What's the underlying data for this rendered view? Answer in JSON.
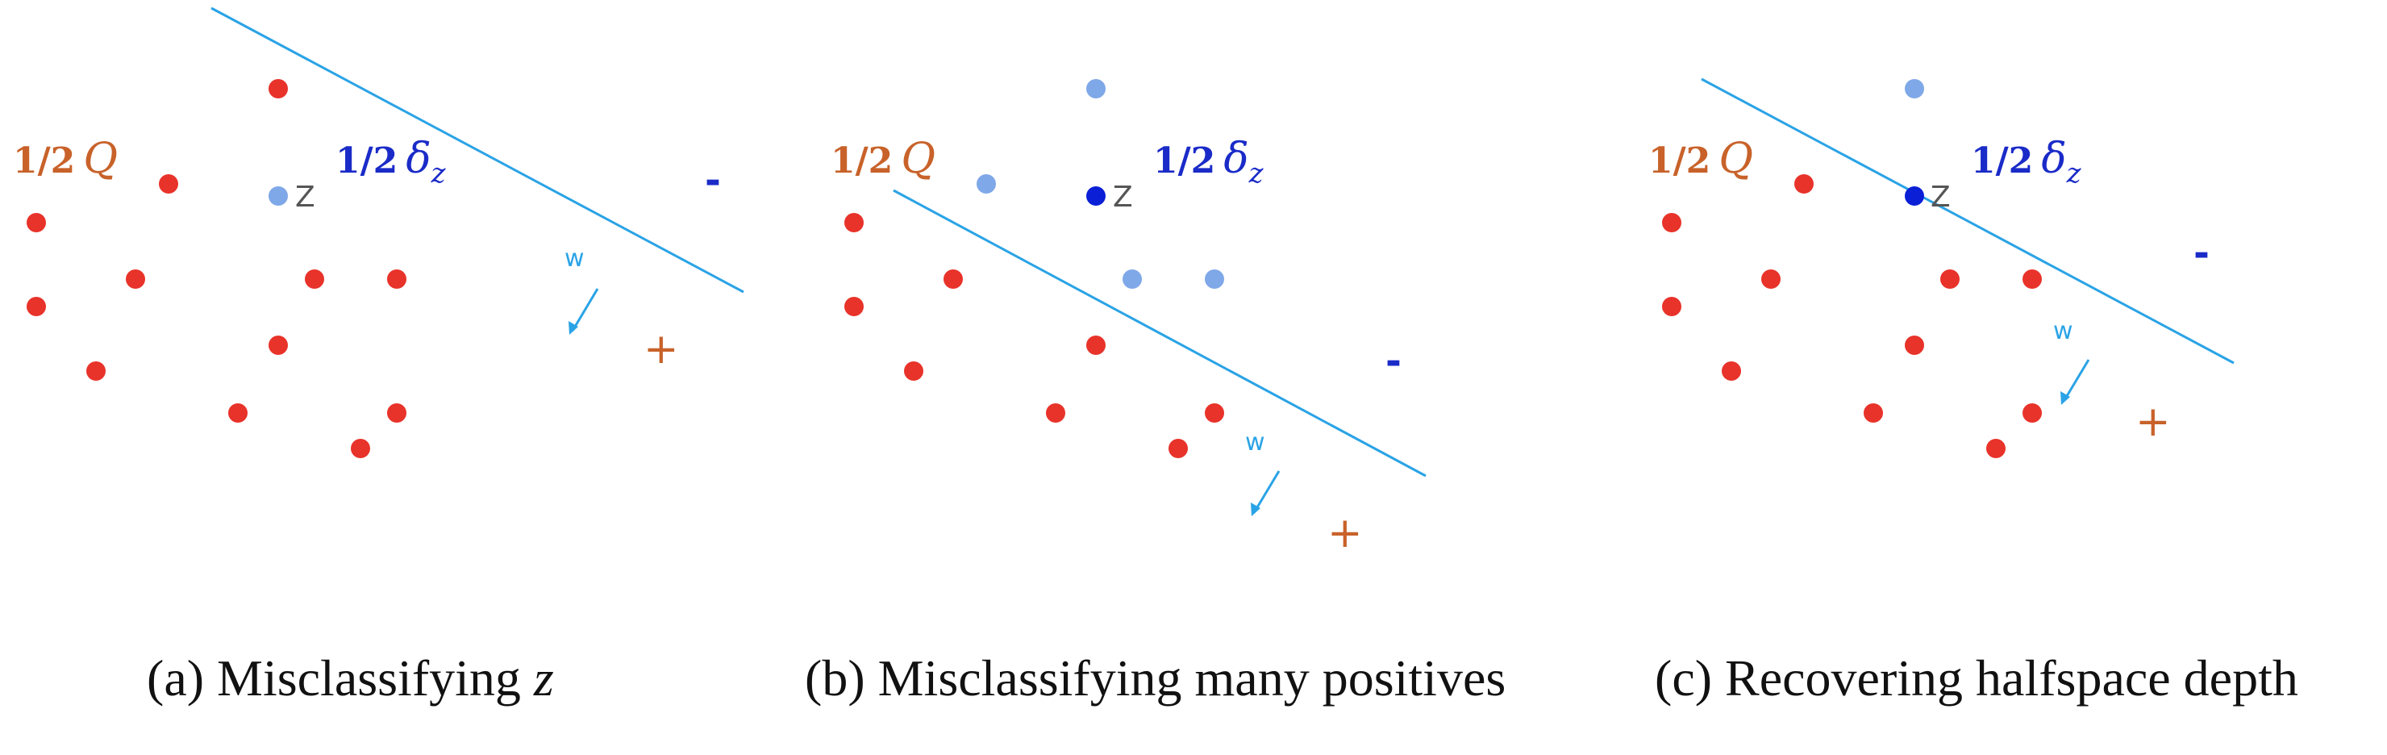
{
  "colors": {
    "negative_point": "#e8332a",
    "positive_point": "#7fa8e8",
    "highlighted_z": "#0a1fd6",
    "hyperplane": "#2aa3e6",
    "q_label": "#c8622a",
    "delta_label": "#1a2bc8",
    "z_label": "#555555",
    "plus_sign": "#c8622a",
    "minus_sign": "#1a2bc8",
    "caption": "#111111"
  },
  "panels": [
    {
      "caption_prefix": "(a) Misclassifying ",
      "caption_math": "z",
      "q_fraction": "1/2",
      "q_symbol": "Q",
      "delta_fraction": "1/2",
      "delta_symbol": "δ",
      "delta_sub": "z",
      "z_label": "Z",
      "w_label": "w",
      "plus_label": "+",
      "minus_label": "-",
      "z_highlighted": false
    },
    {
      "caption_prefix": "(b) Misclassifying many positives",
      "caption_math": "",
      "q_fraction": "1/2",
      "q_symbol": "Q",
      "delta_fraction": "1/2",
      "delta_symbol": "δ",
      "delta_sub": "z",
      "z_label": "Z",
      "w_label": "w",
      "plus_label": "+",
      "minus_label": "-",
      "z_highlighted": true
    },
    {
      "caption_prefix": "(c) Recovering halfspace depth",
      "caption_math": "",
      "q_fraction": "1/2",
      "q_symbol": "Q",
      "delta_fraction": "1/2",
      "delta_symbol": "δ",
      "delta_sub": "z",
      "z_label": "Z",
      "w_label": "w",
      "plus_label": "+",
      "minus_label": "-",
      "z_highlighted": true
    }
  ]
}
